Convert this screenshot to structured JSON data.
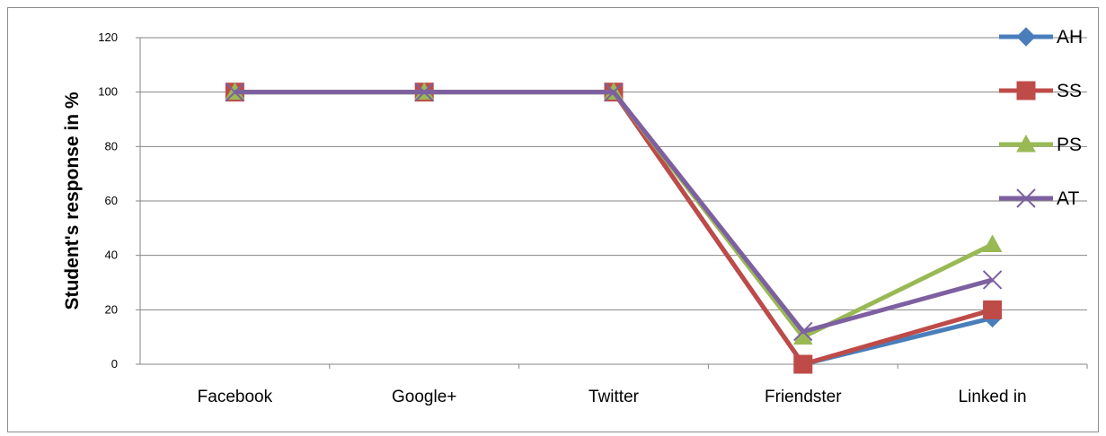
{
  "chart_data": {
    "type": "line",
    "title": "",
    "xlabel": "",
    "ylabel": "Student's response in %",
    "categories": [
      "Facebook",
      "Google+",
      "Twitter",
      "Friendster",
      "Linked in"
    ],
    "ylim": [
      0,
      120
    ],
    "yticks": [
      0,
      20,
      40,
      60,
      80,
      100,
      120
    ],
    "grid": true,
    "legend": "right",
    "series": [
      {
        "name": "AH",
        "color": "#4a7ebb",
        "marker": "diamond",
        "values": [
          100,
          100,
          100,
          0,
          17
        ]
      },
      {
        "name": "SS",
        "color": "#be4b48",
        "marker": "square",
        "values": [
          100,
          100,
          100,
          0,
          20
        ]
      },
      {
        "name": "PS",
        "color": "#98b954",
        "marker": "triangle",
        "values": [
          100,
          100,
          100,
          10,
          44
        ]
      },
      {
        "name": "AT",
        "color": "#7d60a0",
        "marker": "x",
        "values": [
          100,
          100,
          100,
          12,
          31
        ]
      }
    ]
  }
}
